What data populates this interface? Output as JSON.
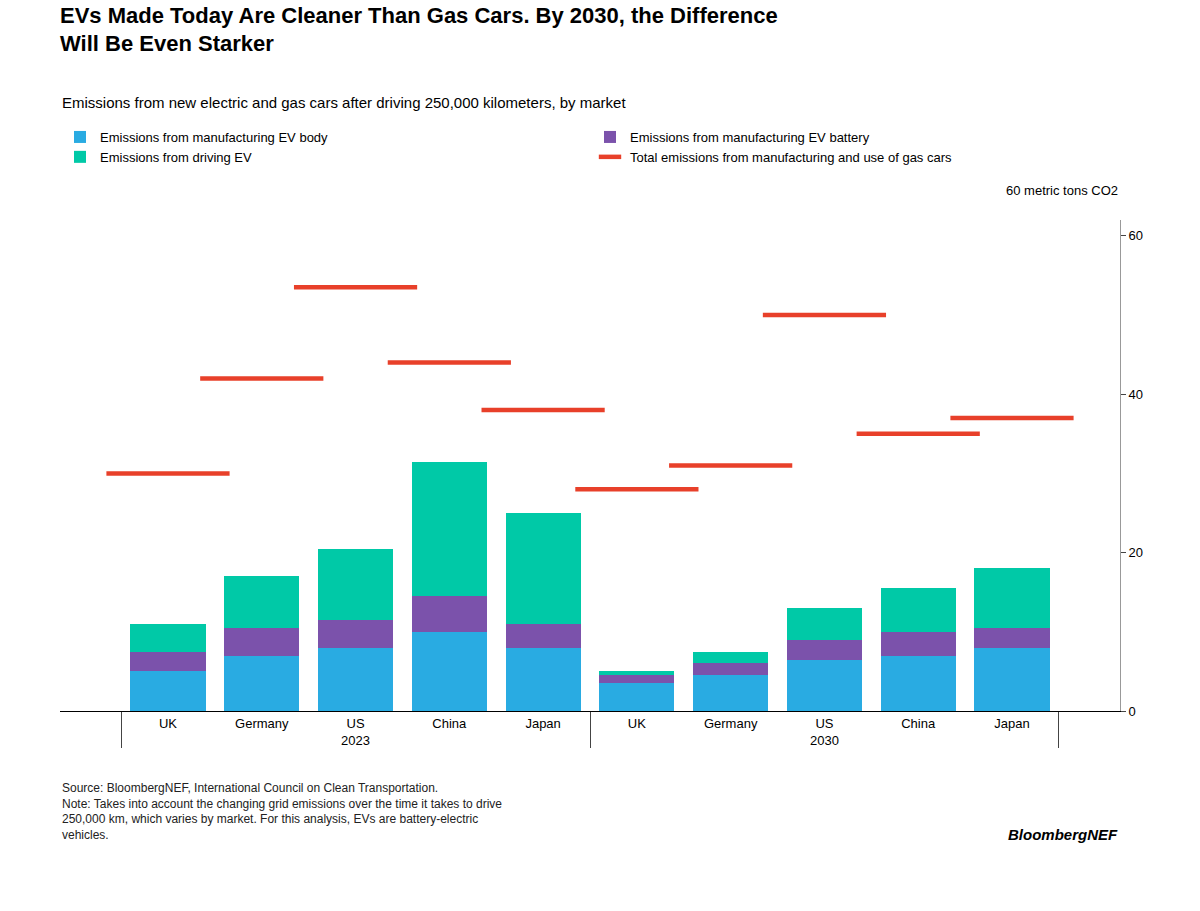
{
  "chart_data": {
    "type": "bar",
    "stacked": true,
    "title": "EVs Made Today Are Cleaner Than Gas Cars. By 2030, the Difference\nWill Be Even Starker",
    "subtitle": "Emissions from new electric and gas cars after driving 250,000 kilometers, by market",
    "ylabel": "60 metric tons CO2",
    "source": "Source: BloombergNEF, International Council on Clean Transportation.\nNote: Takes into account the changing grid emissions over the time it takes to drive\n250,000 km, which varies by market. For this analysis, EVs are battery-electric\nvehicles.",
    "branding": "BloombergNEF",
    "categories": [
      [
        "2023",
        "UK"
      ],
      [
        "2023",
        "Germany"
      ],
      [
        "2023",
        "US"
      ],
      [
        "2023",
        "China"
      ],
      [
        "2023",
        "Japan"
      ],
      [
        "2030",
        "UK"
      ],
      [
        "2030",
        "Germany"
      ],
      [
        "2030",
        "US"
      ],
      [
        "2030",
        "China"
      ],
      [
        "2030",
        "Japan"
      ]
    ],
    "series": [
      {
        "name": "Emissions from manufacturing EV body",
        "color": "#29ABE2",
        "type": "bar",
        "values": [
          5.0,
          7.0,
          8.0,
          10.0,
          8.0,
          3.5,
          4.5,
          6.5,
          7.0,
          8.0
        ]
      },
      {
        "name": "Emissions from manufacturing EV battery",
        "color": "#7B52AB",
        "type": "bar",
        "values": [
          2.5,
          3.5,
          3.5,
          4.5,
          3.0,
          1.0,
          1.5,
          2.5,
          3.0,
          2.5
        ]
      },
      {
        "name": "Emissions from driving EV",
        "color": "#00C9A7",
        "type": "bar",
        "values": [
          3.5,
          6.5,
          9.0,
          17.0,
          14.0,
          0.5,
          1.5,
          4.0,
          5.5,
          7.5
        ]
      },
      {
        "name": "Total emissions from manufacturing and use of gas cars",
        "color": "#E8402A",
        "type": "scatter",
        "marker": "line-ew",
        "values": [
          30.0,
          42.0,
          53.5,
          44.0,
          38.0,
          28.0,
          31.0,
          50.0,
          35.0,
          37.0
        ]
      }
    ],
    "ylim": [
      0,
      62
    ],
    "yticks": [
      0,
      20,
      40,
      60
    ],
    "grid": false,
    "legend": "top"
  }
}
